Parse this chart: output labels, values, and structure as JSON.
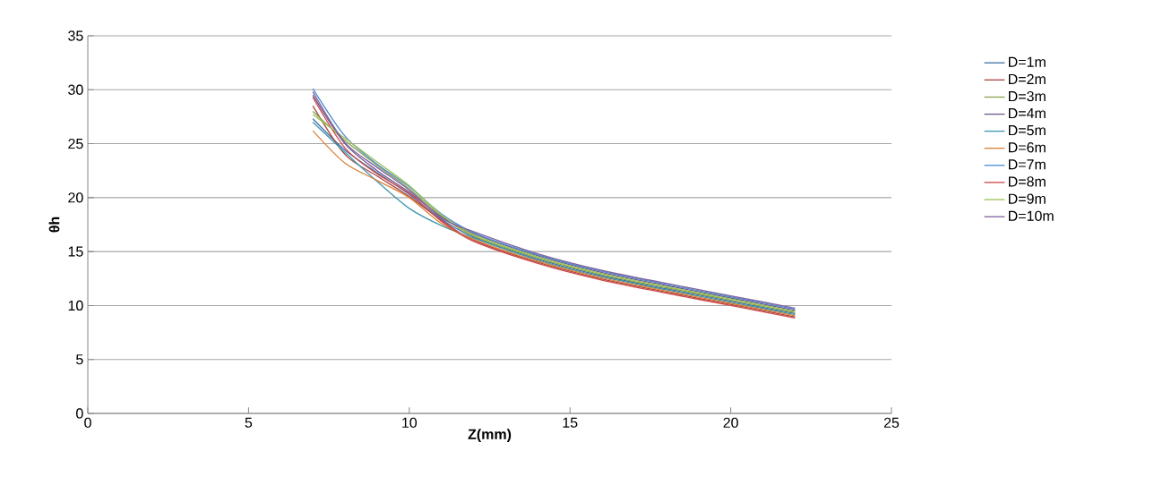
{
  "chart_data": {
    "type": "line",
    "xlabel": "Z(mm)",
    "ylabel": "θh",
    "xlim": [
      0,
      25
    ],
    "xticks": [
      0,
      5,
      10,
      15,
      20,
      25
    ],
    "ylim": [
      0,
      35
    ],
    "yticks": [
      0,
      5,
      10,
      15,
      20,
      25,
      30,
      35
    ],
    "grid": "y",
    "legend": "right",
    "marker": "none",
    "line_style": "solid",
    "x": [
      7,
      8,
      9,
      10,
      11,
      12,
      14,
      16,
      18,
      20,
      22
    ],
    "series": [
      {
        "name": "D=1m",
        "color": "#4572a7",
        "values": [
          27.3,
          24.4,
          22.3,
          20.3,
          18.0,
          16.35,
          14.3,
          12.75,
          11.55,
          10.4,
          9.25
        ]
      },
      {
        "name": "D=2m",
        "color": "#aa4643",
        "values": [
          28.5,
          24.0,
          22.0,
          20.1,
          17.9,
          16.05,
          14.0,
          12.45,
          11.25,
          10.1,
          8.95
        ]
      },
      {
        "name": "D=3m",
        "color": "#89a54e",
        "values": [
          28.0,
          25.3,
          23.0,
          20.8,
          18.3,
          16.45,
          14.4,
          12.85,
          11.65,
          10.5,
          9.35
        ]
      },
      {
        "name": "D=4m",
        "color": "#71588f",
        "values": [
          29.5,
          25.0,
          22.5,
          20.5,
          18.2,
          16.65,
          14.6,
          13.05,
          11.85,
          10.7,
          9.55
        ]
      },
      {
        "name": "D=5m",
        "color": "#4198af",
        "values": [
          27.0,
          24.2,
          21.5,
          19.0,
          17.4,
          16.25,
          14.2,
          12.65,
          11.45,
          10.3,
          9.15
        ]
      },
      {
        "name": "D=6m",
        "color": "#db843d",
        "values": [
          26.2,
          23.2,
          21.6,
          20.0,
          17.6,
          16.15,
          14.1,
          12.55,
          11.35,
          10.2,
          9.05
        ]
      },
      {
        "name": "D=7m",
        "color": "#4f8ed0",
        "values": [
          30.1,
          25.7,
          23.1,
          21.0,
          18.5,
          16.75,
          14.7,
          13.15,
          11.95,
          10.8,
          9.65
        ]
      },
      {
        "name": "D=8m",
        "color": "#d04a48",
        "values": [
          29.3,
          24.6,
          22.2,
          20.4,
          17.8,
          15.95,
          13.9,
          12.35,
          11.15,
          10.0,
          8.85
        ]
      },
      {
        "name": "D=9m",
        "color": "#9bc257",
        "values": [
          27.7,
          25.5,
          23.3,
          21.1,
          18.4,
          16.55,
          14.5,
          12.95,
          11.75,
          10.6,
          9.45
        ]
      },
      {
        "name": "D=10m",
        "color": "#8064a2",
        "values": [
          29.8,
          25.1,
          22.8,
          20.7,
          18.1,
          16.85,
          14.8,
          13.25,
          12.05,
          10.9,
          9.75
        ]
      }
    ]
  }
}
